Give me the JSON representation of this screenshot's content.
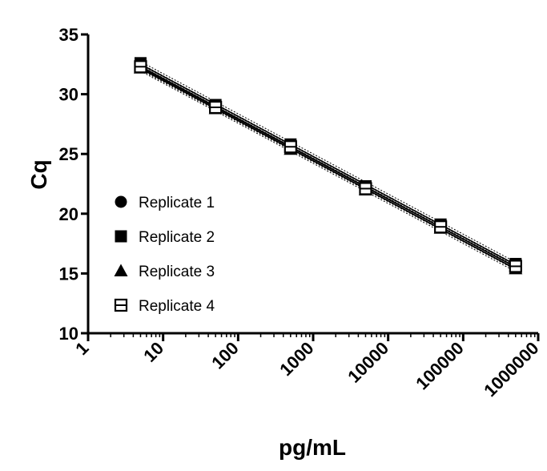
{
  "chart_data": {
    "type": "scatter",
    "title": "",
    "xlabel": "pg/mL",
    "ylabel": "Cq",
    "xscale": "log",
    "xlim": [
      1,
      1000000
    ],
    "ylim": [
      10,
      35
    ],
    "x_ticks": [
      "1",
      "10",
      "100",
      "1000",
      "10000",
      "100000",
      "1000000"
    ],
    "y_ticks": [
      "10",
      "15",
      "20",
      "25",
      "30",
      "35"
    ],
    "legend_position": "center-left",
    "grid": false,
    "x": [
      5,
      50,
      500,
      5000,
      50000,
      500000
    ],
    "series": [
      {
        "name": "Replicate 1",
        "marker": "circle",
        "values": [
          32.4,
          28.9,
          25.7,
          22.1,
          18.9,
          15.6
        ]
      },
      {
        "name": "Replicate 2",
        "marker": "square",
        "values": [
          32.6,
          29.1,
          25.8,
          22.3,
          19.1,
          15.8
        ]
      },
      {
        "name": "Replicate 3",
        "marker": "triangle",
        "values": [
          32.2,
          28.8,
          25.4,
          22.0,
          18.8,
          15.4
        ]
      },
      {
        "name": "Replicate 4",
        "marker": "open-square",
        "values": [
          32.3,
          28.9,
          25.6,
          22.1,
          18.9,
          15.6
        ]
      }
    ]
  }
}
